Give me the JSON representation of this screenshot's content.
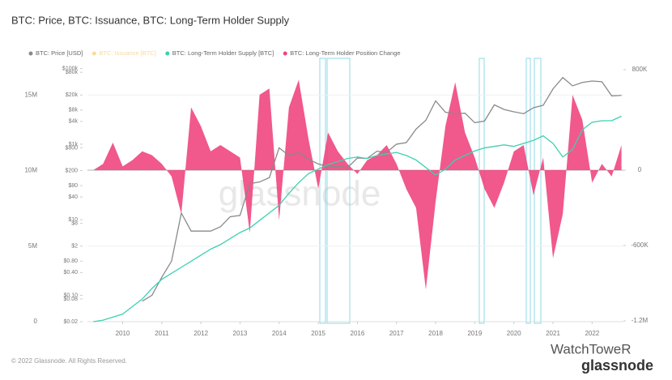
{
  "chart_data": {
    "type": "line",
    "title": "BTC: Price, BTC: Issuance, BTC: Long-Term Holder Supply",
    "footer": "© 2022 Glassnode. All Rights Reserved.",
    "watermark": "glassnode",
    "badge": [
      "WatchToweR",
      "glassnode"
    ],
    "x": [
      2009.25,
      2009.5,
      2009.75,
      2010,
      2010.25,
      2010.5,
      2010.75,
      2011,
      2011.25,
      2011.5,
      2011.75,
      2012,
      2012.25,
      2012.5,
      2012.75,
      2013,
      2013.25,
      2013.5,
      2013.75,
      2014,
      2014.25,
      2014.5,
      2014.75,
      2015,
      2015.25,
      2015.5,
      2015.75,
      2016,
      2016.25,
      2016.5,
      2016.75,
      2017,
      2017.25,
      2017.5,
      2017.75,
      2018,
      2018.25,
      2018.5,
      2018.75,
      2019,
      2019.25,
      2019.5,
      2019.75,
      2020,
      2020.25,
      2020.5,
      2020.75,
      2021,
      2021.25,
      2021.5,
      2021.75,
      2022,
      2022.25,
      2022.5,
      2022.75
    ],
    "xlim": [
      2009.1,
      2022.8
    ],
    "xticks": [
      2010,
      2011,
      2012,
      2013,
      2014,
      2015,
      2016,
      2017,
      2018,
      2019,
      2020,
      2021,
      2022
    ],
    "ylim": [
      0,
      17000000
    ],
    "yticks": [
      0,
      {
        "value": 5000000,
        "label": "5M"
      },
      {
        "value": 10000000,
        "label": "10M"
      },
      {
        "value": 15000000,
        "label": "15M"
      }
    ],
    "y2lim": [
      -1206000,
      839000
    ],
    "y2ticks": [
      {
        "value": 800000,
        "label": "800K"
      },
      0,
      {
        "value": -600000,
        "label": "-600K"
      },
      {
        "value": -1200000,
        "label": "-1.2M"
      }
    ],
    "y3lim": [
      0.02,
      126000
    ],
    "y3log": true,
    "y3ticks": [
      {
        "value": 100000,
        "label": "$100k"
      },
      {
        "value": 80000,
        "label": "$80k"
      },
      {
        "value": 20000,
        "label": "$20k"
      },
      {
        "value": 8000,
        "label": "$8k"
      },
      {
        "value": 4000,
        "label": "$4k"
      },
      {
        "value": 1000,
        "label": "$1k"
      },
      {
        "value": 800,
        "label": "$800"
      },
      {
        "value": 200,
        "label": "$200"
      },
      {
        "value": 80,
        "label": "$80"
      },
      {
        "value": 40,
        "label": "$40"
      },
      {
        "value": 10,
        "label": "$10"
      },
      {
        "value": 8,
        "label": "$8"
      },
      {
        "value": 2,
        "label": "$2"
      },
      {
        "value": 0.8,
        "label": "$0.80"
      },
      {
        "value": 0.4,
        "label": "$0.40"
      },
      {
        "value": 0.1,
        "label": "$0.10"
      },
      {
        "value": 0.08,
        "label": "$0.08"
      },
      {
        "value": 0.02,
        "label": "$0.02"
      }
    ],
    "grid": true,
    "series": [
      {
        "name": "BTC: Price [USD]",
        "color": "#8a8a8a",
        "axis": "y3",
        "type": "line",
        "values": [
          null,
          null,
          null,
          null,
          null,
          0.07,
          0.1,
          0.3,
          0.8,
          15,
          5,
          5,
          5,
          6.5,
          12,
          13,
          90,
          100,
          130,
          800,
          500,
          600,
          400,
          300,
          250,
          260,
          240,
          430,
          420,
          650,
          610,
          1000,
          1100,
          2500,
          4300,
          14000,
          7000,
          6400,
          6600,
          3700,
          4100,
          11000,
          8300,
          7200,
          6400,
          9200,
          10700,
          29000,
          58000,
          35000,
          43000,
          47000,
          45000,
          19000,
          19500
        ]
      },
      {
        "name": "BTC: Issuance [BTC]",
        "color": "#f7dc9a"
      },
      {
        "name": "BTC: Long-Term Holder Supply [BTC]",
        "color": "#3fd0b0",
        "type": "line",
        "values": [
          0,
          100000,
          300000,
          500000,
          1000000,
          1500000,
          2200000,
          2800000,
          3200000,
          3600000,
          4000000,
          4400000,
          4800000,
          5100000,
          5500000,
          5900000,
          6200000,
          6700000,
          7200000,
          7700000,
          8500000,
          9200000,
          9800000,
          10100000,
          10400000,
          10600000,
          10800000,
          10900000,
          10800000,
          11000000,
          11100000,
          11200000,
          11000000,
          10700000,
          10200000,
          9700000,
          10100000,
          10700000,
          11000000,
          11300000,
          11500000,
          11600000,
          11700000,
          11600000,
          11800000,
          12000000,
          12300000,
          11800000,
          10900000,
          11400000,
          12700000,
          13200000,
          13300000,
          13300000,
          13600000
        ]
      },
      {
        "name": "BTC: Long-Term Holder Position Change",
        "color": "#f0467e",
        "axis": "y2",
        "type": "area",
        "values": [
          0,
          50000,
          220000,
          30000,
          80000,
          150000,
          120000,
          50000,
          -50000,
          -350000,
          500000,
          350000,
          150000,
          200000,
          150000,
          100000,
          -500000,
          600000,
          650000,
          -400000,
          500000,
          720000,
          250000,
          -150000,
          300000,
          150000,
          50000,
          -30000,
          80000,
          120000,
          200000,
          50000,
          -150000,
          -300000,
          -950000,
          -250000,
          350000,
          700000,
          300000,
          100000,
          -150000,
          -300000,
          -100000,
          150000,
          200000,
          -200000,
          100000,
          -700000,
          -350000,
          600000,
          400000,
          -100000,
          50000,
          -50000,
          200000
        ]
      }
    ]
  }
}
